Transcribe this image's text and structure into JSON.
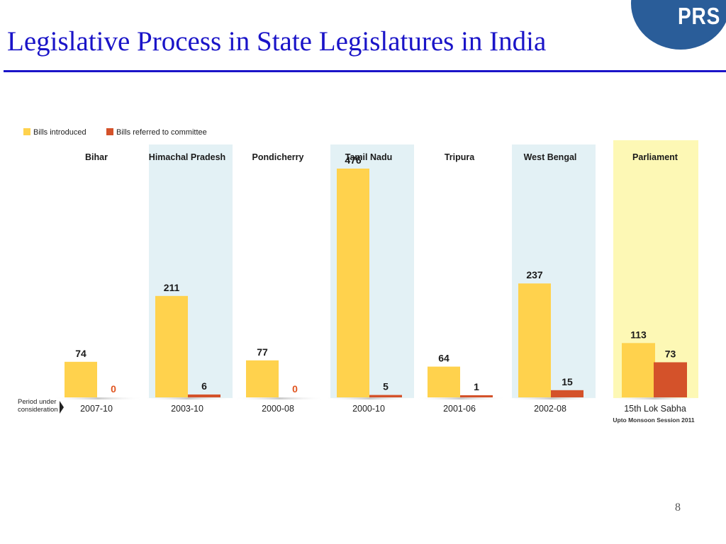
{
  "slide": {
    "title": "Legislative Process in State Legislatures in India",
    "logo_text": "PRS",
    "page_number": "8"
  },
  "chart_data": {
    "type": "bar",
    "title": "",
    "xlabel": "",
    "ylabel": "",
    "legend_position": "top-left",
    "grid": false,
    "categories": [
      "Bihar",
      "Himachal Pradesh",
      "Pondicherry",
      "Tamil Nadu",
      "Tripura",
      "West Bengal",
      "Parliament"
    ],
    "periods": [
      "2007-10",
      "2003-10",
      "2000-08",
      "2000-10",
      "2001-06",
      "2002-08",
      "15th Lok Sabha"
    ],
    "period_note": "Upto Monsoon Session 2011",
    "period_label": "Period under consideration",
    "series": [
      {
        "name": "Bills introduced",
        "color": "#ffd24d",
        "values": [
          74,
          211,
          77,
          476,
          64,
          237,
          113
        ]
      },
      {
        "name": "Bills referred to committee",
        "color": "#d4522a",
        "values": [
          0,
          6,
          0,
          5,
          1,
          15,
          73
        ]
      }
    ],
    "ylim": [
      0,
      476
    ],
    "colors": {
      "panel_tint": "#e3f1f5",
      "parliament_tint": "#fdf8b5",
      "zero_label": "#e0541f",
      "value_label": "#1a1a1a"
    }
  }
}
